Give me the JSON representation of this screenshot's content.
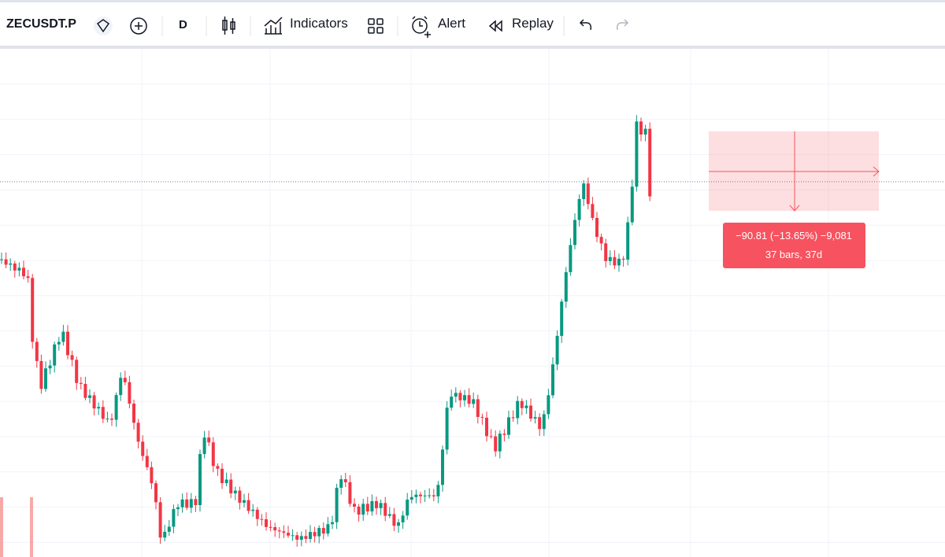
{
  "toolbar": {
    "symbol": "ZECUSDT.P",
    "interval": "D",
    "indicators": "Indicators",
    "alert": "Alert",
    "replay": "Replay"
  },
  "measure": {
    "line1": "−90.81 (−13.65%) −9,081",
    "line2": "37 bars, 37d"
  }
}
